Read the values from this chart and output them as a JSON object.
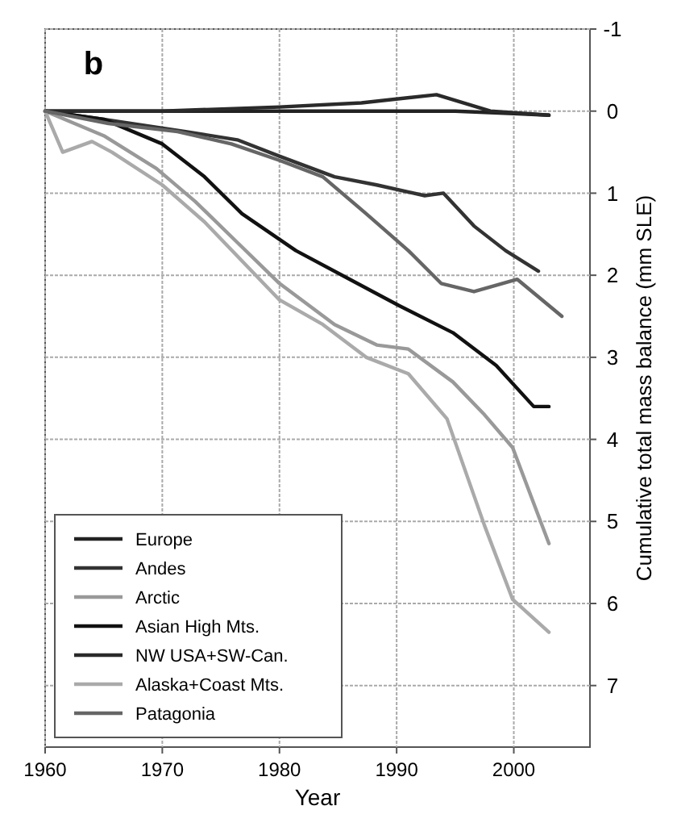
{
  "chart_data": {
    "type": "line",
    "xlabel": "Year",
    "ylabel": "Cumulative total mass balance (mm SLE)",
    "annotations": [
      "b"
    ],
    "xlim": [
      1960,
      2006.5
    ],
    "xticks": [
      1960,
      1970,
      1980,
      1990,
      2000
    ],
    "ylim": [
      7.75,
      -1
    ],
    "yticks": [
      -1,
      0,
      1,
      2,
      3,
      4,
      5,
      6,
      7
    ],
    "grid": true,
    "legend": "bottom left",
    "line_style": "solid",
    "series": [
      {
        "name": "Europe",
        "color": "#222222",
        "x": [
          1960,
          1970,
          1980,
          1990,
          1995,
          2000,
          2003
        ],
        "values": [
          0,
          0,
          0,
          0,
          0,
          0.03,
          0.05
        ]
      },
      {
        "name": "Andes",
        "color": "#333333",
        "x": [
          1960,
          1965,
          1972,
          1976.4,
          1980,
          1984.7,
          1988.3,
          1992.4,
          1994,
          1996.6,
          1999.3,
          2002.1
        ],
        "values": [
          0,
          0.1,
          0.25,
          0.35,
          0.55,
          0.8,
          0.9,
          1.03,
          1,
          1.4,
          1.7,
          1.95
        ]
      },
      {
        "name": "Arctic",
        "color": "#999999",
        "x": [
          1960,
          1965,
          1969.5,
          1972.8,
          1976.4,
          1980,
          1984.7,
          1988.3,
          1991,
          1994.8,
          1997.5,
          1999.9,
          2003
        ],
        "values": [
          0,
          0.3,
          0.7,
          1.1,
          1.6,
          2.1,
          2.6,
          2.85,
          2.9,
          3.3,
          3.7,
          4.1,
          5.27
        ]
      },
      {
        "name": "Asian High Mts.",
        "color": "#111111",
        "x": [
          1960,
          1965,
          1970,
          1973.6,
          1976.8,
          1981.4,
          1986,
          1990.2,
          1994.8,
          1998.5,
          2001.7,
          2003
        ],
        "values": [
          0,
          0.1,
          0.4,
          0.8,
          1.25,
          1.7,
          2.05,
          2.37,
          2.7,
          3.1,
          3.6,
          3.6
        ]
      },
      {
        "name": "NW USA+SW-Can.",
        "color": "#2a2a2a",
        "x": [
          1960,
          1970,
          1980,
          1987,
          1993.4,
          1998,
          2003
        ],
        "values": [
          0,
          0,
          -0.05,
          -0.1,
          -0.2,
          0,
          0.05
        ]
      },
      {
        "name": "Alaska+Coast Mts.",
        "color": "#aaaaaa",
        "x": [
          1960,
          1961.5,
          1964,
          1965.7,
          1970,
          1973.6,
          1980,
          1983.7,
          1987.4,
          1991,
          1994.3,
          1997.5,
          1999.9,
          2003
        ],
        "values": [
          0,
          0.5,
          0.37,
          0.5,
          0.9,
          1.35,
          2.3,
          2.6,
          3,
          3.2,
          3.75,
          5.05,
          5.95,
          6.35
        ]
      },
      {
        "name": "Patagonia",
        "color": "#666666",
        "x": [
          1960,
          1965.4,
          1971.3,
          1975.9,
          1980,
          1983.7,
          1987.4,
          1991,
          1993.8,
          1996.6,
          2000.3,
          2004.1
        ],
        "values": [
          0,
          0.15,
          0.25,
          0.4,
          0.6,
          0.8,
          1.25,
          1.7,
          2.1,
          2.2,
          2.05,
          2.5
        ]
      }
    ]
  }
}
